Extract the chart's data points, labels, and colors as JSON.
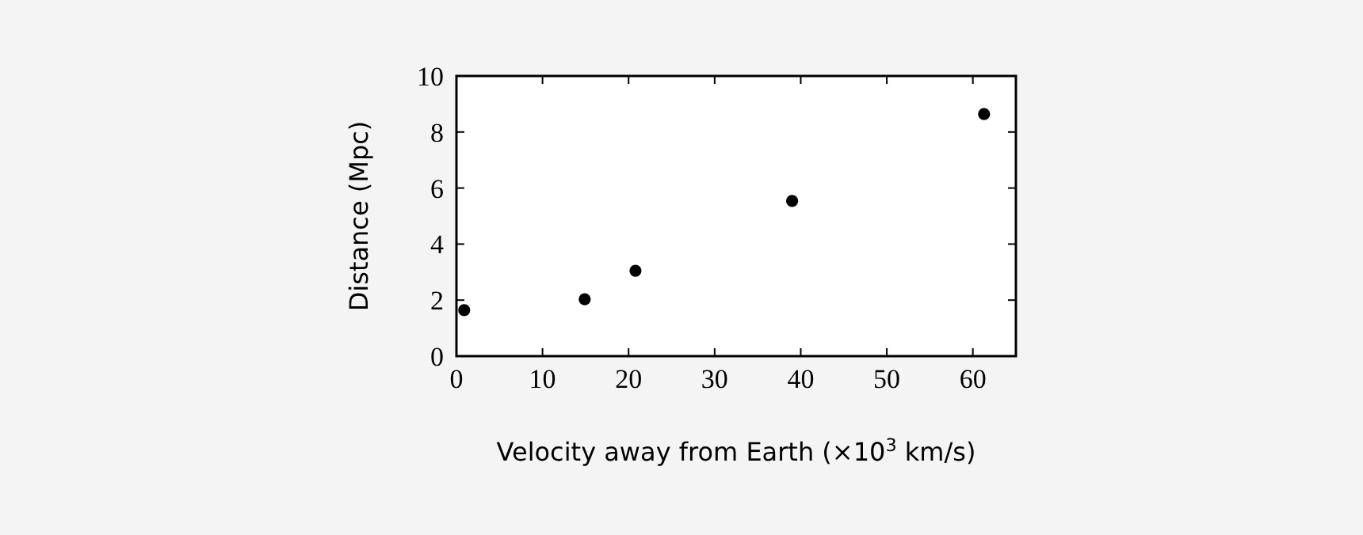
{
  "chart_data": {
    "type": "scatter",
    "xlabel": "Velocity away from Earth (×10$^{3}$ km/s)",
    "ylabel": "Distance (Mpc)",
    "x": [
      0.9,
      14.9,
      20.8,
      39.0,
      61.3
    ],
    "values": [
      1.64,
      2.03,
      3.05,
      5.54,
      8.64
    ],
    "color": "#000000",
    "marker": "circle",
    "xlim": [
      0,
      65
    ],
    "xticks": [
      0,
      10,
      20,
      30,
      40,
      50,
      60
    ],
    "ylim": [
      0,
      10
    ],
    "yticks": [
      0,
      2,
      4,
      6,
      8,
      10
    ],
    "grid": false
  }
}
